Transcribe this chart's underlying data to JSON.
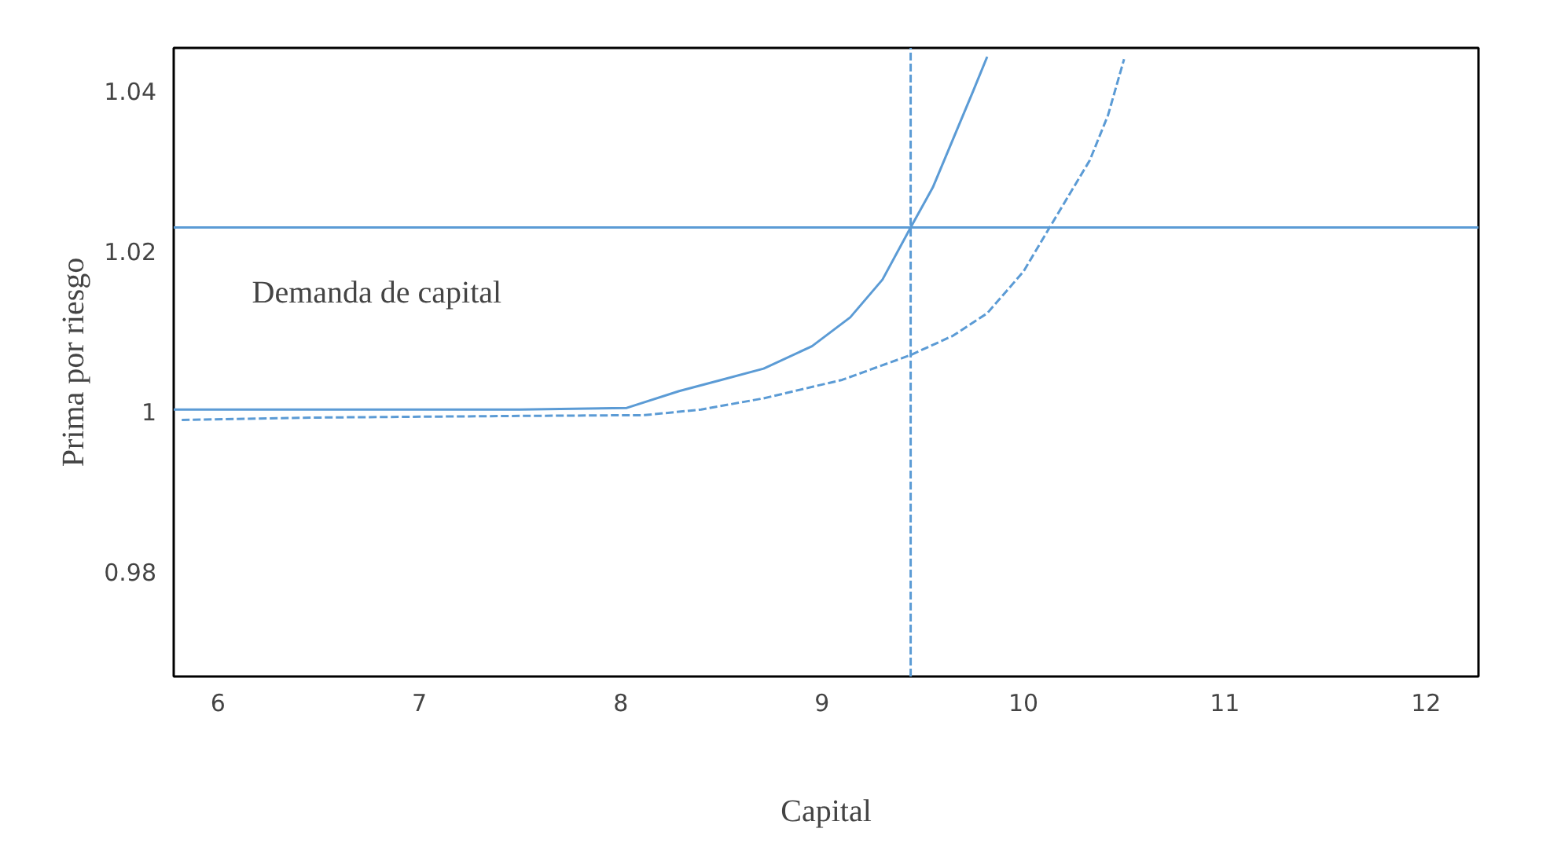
{
  "chart_data": {
    "type": "line",
    "xlabel": "Capital",
    "ylabel": "Prima por riesgo",
    "xlim": [
      5.78,
      12.26
    ],
    "ylim": [
      0.967,
      1.0454
    ],
    "xticks": [
      6,
      7,
      8,
      9,
      10,
      11,
      12
    ],
    "yticks": [
      0.98,
      1,
      1.02,
      1.04
    ],
    "grid": false,
    "marker": "none",
    "series": [
      {
        "color": "#5b9bd5",
        "line_style": "solid",
        "x": [
          5.78,
          6.5,
          7.5,
          8.03,
          8.29,
          8.5,
          8.71,
          8.95,
          9.14,
          9.3,
          9.44,
          9.55,
          9.65,
          9.75,
          9.82
        ],
        "values": [
          1.0003,
          1.0003,
          1.0003,
          1.0005,
          1.0026,
          1.004,
          1.0054,
          1.0082,
          1.0118,
          1.0165,
          1.023,
          1.028,
          1.034,
          1.04,
          1.0443
        ]
      },
      {
        "color": "#5b9bd5",
        "line_style": "dashed",
        "x": [
          5.82,
          6.5,
          7.5,
          8.12,
          8.4,
          8.71,
          9.1,
          9.44,
          9.65,
          9.82,
          10.0,
          10.13,
          10.33,
          10.42,
          10.5
        ],
        "values": [
          0.999,
          0.9993,
          0.9995,
          0.9996,
          1.0003,
          1.0017,
          1.004,
          1.0071,
          1.0095,
          1.0123,
          1.0175,
          1.023,
          1.0314,
          1.037,
          1.044
        ]
      }
    ],
    "ref_lines": [
      {
        "axis": "y",
        "value": 1.023,
        "color": "#5b9bd5",
        "line_style": "solid"
      },
      {
        "axis": "x",
        "value": 9.44,
        "color": "#5b9bd5",
        "line_style": "dashed"
      }
    ],
    "annotations": [
      "Demanda de capital"
    ]
  }
}
